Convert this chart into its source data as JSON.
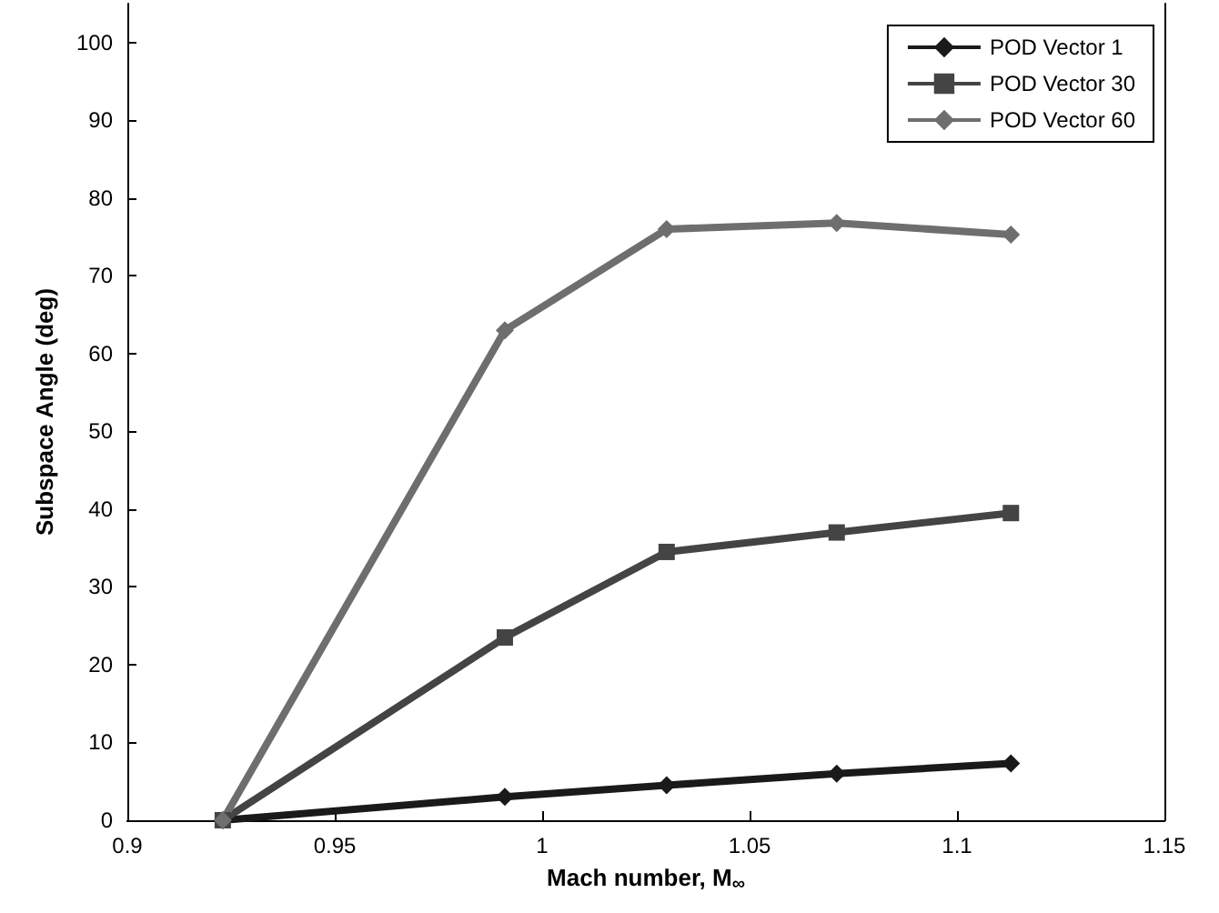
{
  "chart_data": {
    "type": "line",
    "xlabel": "Mach number, M$_{∞}$",
    "ylabel": "Subspace Angle (deg)",
    "x": [
      0.923,
      0.991,
      1.03,
      1.071,
      1.113
    ],
    "series": [
      {
        "name": "POD Vector 1",
        "color": "#1a1a1a",
        "marker": "diamond",
        "values": [
          0,
          3,
          4.5,
          6,
          7.3
        ]
      },
      {
        "name": "POD Vector 30",
        "color": "#444444",
        "marker": "square",
        "values": [
          0,
          23.5,
          34.5,
          37,
          39.5
        ]
      },
      {
        "name": "POD Vector 60",
        "color": "#6e6e6e",
        "marker": "diamond",
        "values": [
          0,
          63,
          76,
          76.8,
          75.3
        ]
      }
    ],
    "xlim": [
      0.9,
      1.15
    ],
    "xticks": [
      0.9,
      0.95,
      1,
      1.05,
      1.1,
      1.15
    ],
    "ylim": [
      0,
      105
    ],
    "yticks": [
      0,
      10,
      20,
      30,
      40,
      50,
      60,
      70,
      80,
      90,
      100
    ],
    "legend": "top right",
    "grid": false,
    "line_style": "solid"
  }
}
